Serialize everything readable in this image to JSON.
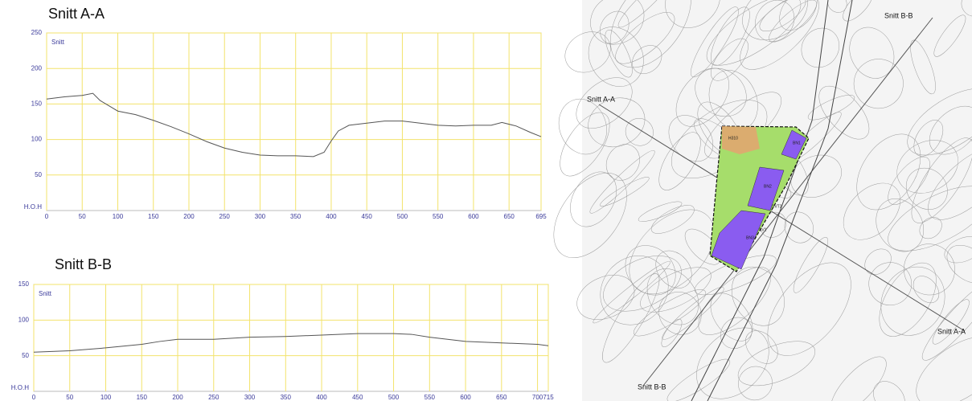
{
  "chart_data": [
    {
      "type": "line",
      "title": "Snitt A-A",
      "inner_label": "Snitt",
      "x": [
        0,
        25,
        50,
        65,
        75,
        100,
        125,
        150,
        175,
        200,
        225,
        250,
        275,
        300,
        325,
        350,
        375,
        390,
        400,
        410,
        425,
        450,
        475,
        500,
        525,
        550,
        575,
        600,
        625,
        640,
        660,
        680,
        695
      ],
      "series": [
        {
          "color": "#555555",
          "values": [
            157,
            160,
            162,
            165,
            155,
            140,
            135,
            127,
            118,
            108,
            97,
            88,
            82,
            78,
            77,
            77,
            76,
            82,
            98,
            112,
            120,
            123,
            126,
            126,
            123,
            120,
            119,
            120,
            120,
            124,
            119,
            110,
            104
          ]
        }
      ],
      "xlim": [
        0,
        695
      ],
      "xticks": [
        0,
        50,
        100,
        150,
        200,
        250,
        300,
        350,
        400,
        450,
        500,
        550,
        600,
        650,
        695
      ],
      "ylim": [
        0,
        250
      ],
      "yticks": [
        {
          "value": 0,
          "label": "H.O.H"
        },
        50,
        100,
        150,
        200,
        250
      ],
      "grid": true,
      "grid_color": "#f3e36b"
    },
    {
      "type": "line",
      "title": "Snitt B-B",
      "inner_label": "Snitt",
      "x": [
        0,
        50,
        100,
        150,
        175,
        200,
        250,
        300,
        350,
        400,
        450,
        500,
        525,
        550,
        600,
        650,
        700,
        715
      ],
      "series": [
        {
          "color": "#555555",
          "values": [
            55,
            57,
            61,
            66,
            70,
            73,
            73,
            76,
            77,
            79,
            81,
            81,
            80,
            76,
            70,
            68,
            66,
            64
          ]
        }
      ],
      "xlim": [
        0,
        715
      ],
      "xticks": [
        0,
        50,
        100,
        150,
        200,
        250,
        300,
        350,
        400,
        450,
        500,
        550,
        600,
        650,
        700,
        715
      ],
      "ylim": [
        0,
        150
      ],
      "yticks": [
        {
          "value": 0,
          "label": "H.O.H"
        },
        50,
        100,
        150
      ],
      "grid": true,
      "grid_color": "#f3e36b"
    }
  ],
  "map": {
    "labels": [
      "Snitt B-B",
      "Snitt A-A",
      "Snitt A-A",
      "Snitt B-B"
    ],
    "zones": [
      "BN1",
      "BN2",
      "BN3",
      "H310",
      "SVT2",
      "SV1"
    ]
  }
}
